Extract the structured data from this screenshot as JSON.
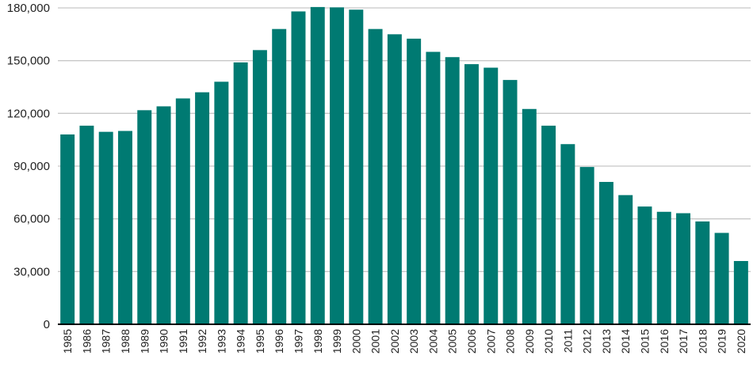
{
  "chart_data": {
    "type": "bar",
    "title": "",
    "xlabel": "",
    "ylabel": "",
    "categories": [
      "1985",
      "1986",
      "1987",
      "1988",
      "1989",
      "1990",
      "1991",
      "1992",
      "1993",
      "1994",
      "1995",
      "1996",
      "1997",
      "1998",
      "1999",
      "2000",
      "2001",
      "2002",
      "2003",
      "2004",
      "2005",
      "2006",
      "2007",
      "2008",
      "2009",
      "2010",
      "2011",
      "2012",
      "2013",
      "2014",
      "2015",
      "2016",
      "2017",
      "2018",
      "2019",
      "2020"
    ],
    "values": [
      108000,
      113000,
      109500,
      110000,
      121800,
      124000,
      128500,
      132000,
      138000,
      149000,
      156000,
      168000,
      178000,
      180500,
      180300,
      179000,
      168000,
      165000,
      162500,
      155000,
      152000,
      148000,
      146000,
      139000,
      122500,
      113000,
      102500,
      89500,
      81000,
      73500,
      67000,
      64000,
      63200,
      58500,
      52000,
      36000
    ],
    "ylim": [
      0,
      180000
    ],
    "yticks": [
      0,
      30000,
      60000,
      90000,
      120000,
      150000,
      180000
    ],
    "ytick_labels": [
      "0",
      "30,000",
      "60,000",
      "90,000",
      "120,000",
      "150,000",
      "180,000"
    ],
    "grid": true,
    "colors": {
      "bar": "#007A72",
      "grid": "#c8c8c8",
      "axis": "#000000"
    }
  }
}
